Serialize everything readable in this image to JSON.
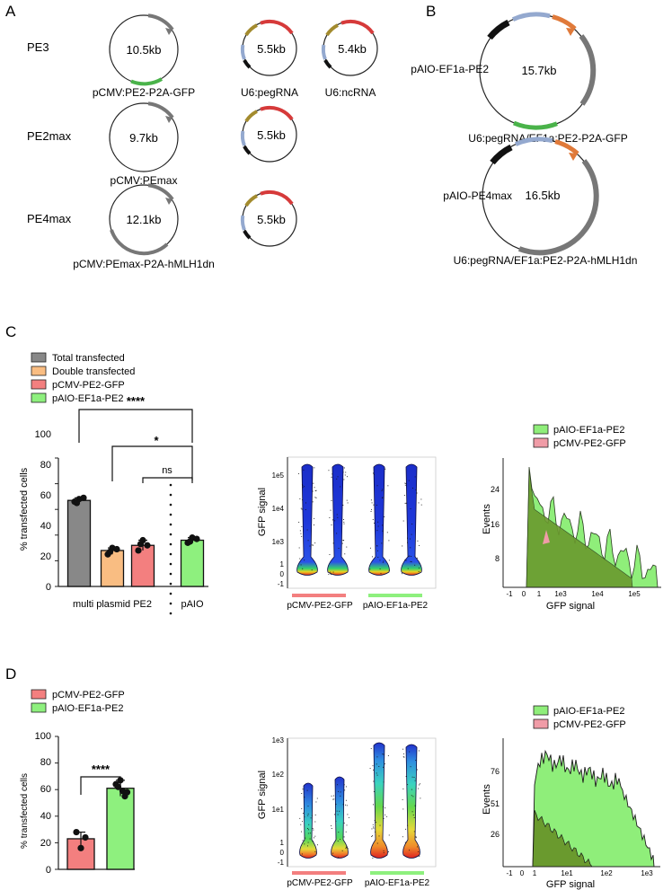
{
  "panels": {
    "A": "A",
    "B": "B",
    "C": "C",
    "D": "D"
  },
  "colors": {
    "total": "#888888",
    "double": "#f9bd82",
    "pcmv": "#f37f7f",
    "paio": "#8ef07e",
    "green_fill": "#8fee7a",
    "dark_green": "#6a9a2e",
    "pink_fill": "#f09ca7",
    "feat_red": "#d63a3a",
    "feat_olive": "#a38b2e",
    "feat_blue": "#94a9cf",
    "feat_black": "#111111",
    "feat_green": "#4ab34a",
    "feat_orange": "#e07a3a",
    "feat_gray": "#777777"
  },
  "panelA": {
    "rows": [
      {
        "label": "PE3",
        "plasmids": [
          {
            "size": "10.5kb",
            "name": "pCMV:PE2-P2A-GFP"
          },
          {
            "size": "5.5kb",
            "name": "U6:pegRNA"
          },
          {
            "size": "5.4kb",
            "name": "U6:ncRNA"
          }
        ]
      },
      {
        "label": "PE2max",
        "plasmids": [
          {
            "size": "9.7kb",
            "name": "pCMV:PEmax"
          },
          {
            "size": "5.5kb",
            "name": ""
          }
        ]
      },
      {
        "label": "PE4max",
        "plasmids": [
          {
            "size": "12.1kb",
            "name": "pCMV:PEmax-P2A-hMLH1dn"
          },
          {
            "size": "5.5kb",
            "name": ""
          }
        ]
      }
    ]
  },
  "panelB": {
    "plasmids": [
      {
        "label": "pAIO-EF1a-PE2",
        "size": "15.7kb",
        "name": "U6:pegRNA/EF1a:PE2-P2A-GFP"
      },
      {
        "label": "pAIO-PE4max",
        "size": "16.5kb",
        "name": "U6:pegRNA/EF1a:PE2-P2A-hMLH1dn"
      }
    ]
  },
  "panelC": {
    "legend": [
      "Total transfected",
      "Double transfected",
      "pCMV-PE2-GFP",
      "pAIO-EF1a-PE2"
    ],
    "bar": {
      "ylabel": "% transfected cells",
      "yticks": [
        "0",
        "20",
        "40",
        "60",
        "80",
        "100"
      ],
      "group_labels": [
        "multi plasmid PE2",
        "pAIO"
      ],
      "sig": [
        "****",
        "*",
        "ns"
      ]
    },
    "density": {
      "ylabel": "GFP signal",
      "yticks": [
        "1e5",
        "1e4",
        "1e3",
        "1",
        "0",
        "-1"
      ],
      "xlabels": [
        "pCMV-PE2-GFP",
        "pAIO-EF1a-PE2"
      ]
    },
    "hist": {
      "legend": [
        "pAIO-EF1a-PE2",
        "pCMV-PE2-GFP"
      ],
      "ylabel": "Events",
      "xlabel": "GFP signal",
      "yticks": [
        "24",
        "16",
        "8"
      ],
      "xticks": [
        "-1",
        "0",
        "1",
        "1e3",
        "1e4",
        "1e5"
      ]
    }
  },
  "panelD": {
    "legend": [
      "pCMV-PE2-GFP",
      "pAIO-EF1a-PE2"
    ],
    "bar": {
      "ylabel": "% transfected cells",
      "yticks": [
        "0",
        "20",
        "40",
        "60",
        "80",
        "100"
      ],
      "sig": "****"
    },
    "density": {
      "ylabel": "GFP signal",
      "yticks": [
        "1e3",
        "1e2",
        "1e1",
        "1",
        "0",
        "-1"
      ],
      "xlabels": [
        "pCMV-PE2-GFP",
        "pAIO-EF1a-PE2"
      ]
    },
    "hist": {
      "legend": [
        "pAIO-EF1a-PE2",
        "pCMV-PE2-GFP"
      ],
      "ylabel": "Events",
      "xlabel": "GFP signal",
      "yticks": [
        "76",
        "51",
        "26"
      ],
      "xticks": [
        "-1",
        "0",
        "1",
        "1e1",
        "1e2",
        "1e3"
      ]
    }
  },
  "chart_data": [
    {
      "type": "bar",
      "panel": "C",
      "categories": [
        "Total transfected",
        "Double transfected",
        "pCMV-PE2-GFP",
        "pAIO-EF1a-PE2"
      ],
      "values": [
        67,
        28,
        32,
        36
      ],
      "points": [
        [
          66,
          68,
          69,
          65
        ],
        [
          25,
          30,
          29,
          27
        ],
        [
          28,
          36,
          32,
          33
        ],
        [
          34,
          38,
          37,
          35
        ]
      ],
      "ylabel": "% transfected cells",
      "ylim": [
        0,
        100
      ],
      "group_labels": [
        "multi plasmid PE2",
        "pAIO"
      ],
      "significance": [
        "****",
        "*",
        "ns"
      ]
    },
    {
      "type": "bar",
      "panel": "D",
      "categories": [
        "pCMV-PE2-GFP",
        "pAIO-EF1a-PE2"
      ],
      "values": [
        23,
        61
      ],
      "points": [
        [
          28,
          16,
          24
        ],
        [
          64,
          67,
          55,
          62,
          59,
          58
        ]
      ],
      "ylabel": "% transfected cells",
      "ylim": [
        0,
        100
      ],
      "significance": [
        "****"
      ]
    }
  ]
}
